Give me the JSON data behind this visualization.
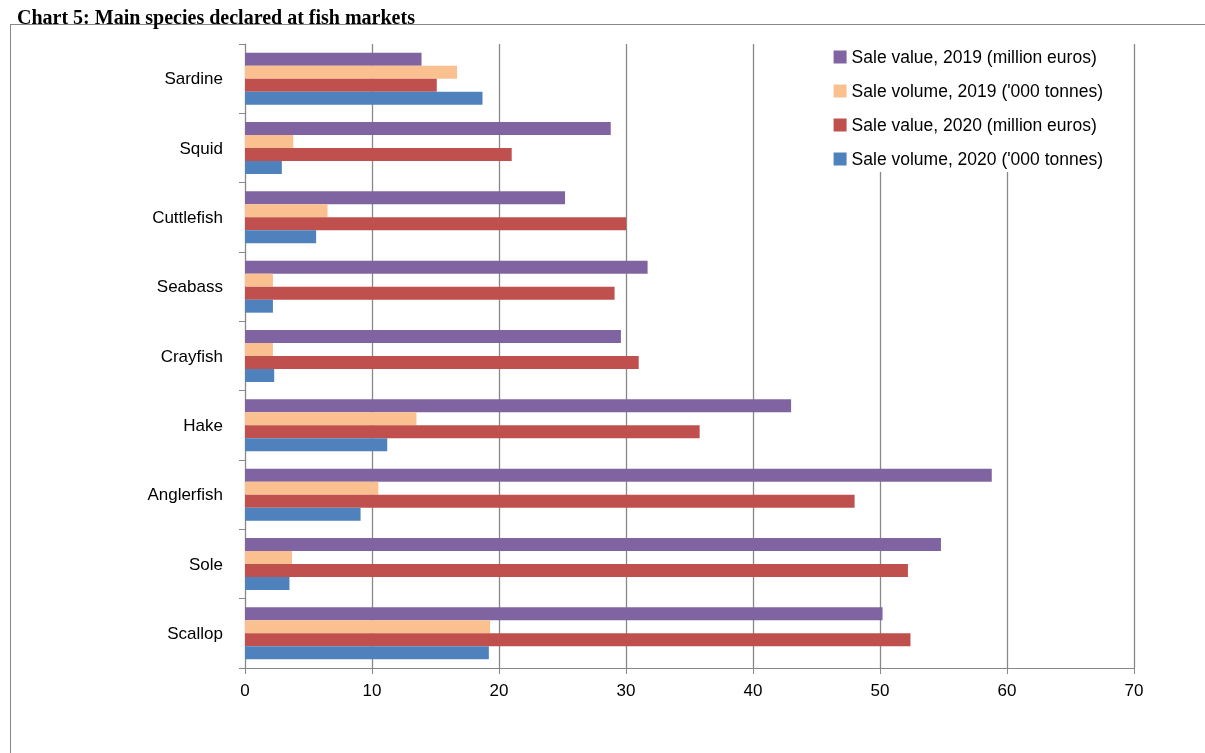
{
  "chart_data": {
    "type": "bar",
    "orientation": "horizontal",
    "title": "Chart 5: Main species declared at fish markets",
    "categories": [
      "Sardine",
      "Squid",
      "Cuttlefish",
      "Seabass",
      "Crayfish",
      "Hake",
      "Anglerfish",
      "Sole",
      "Scallop"
    ],
    "series": [
      {
        "name": "Sale value, 2019 (million euros)",
        "color": "#8064a2",
        "values": [
          13.9,
          28.8,
          25.2,
          31.7,
          29.6,
          43.0,
          58.8,
          54.8,
          50.2
        ]
      },
      {
        "name": "Sale volume, 2019 ('000 tonnes)",
        "color": "#fac090",
        "values": [
          16.7,
          3.8,
          6.5,
          2.2,
          2.2,
          13.5,
          10.5,
          3.7,
          19.3
        ]
      },
      {
        "name": "Sale value, 2020 (million euros)",
        "color": "#c0504d",
        "values": [
          15.1,
          21.0,
          30.0,
          29.1,
          31.0,
          35.8,
          48.0,
          52.2,
          52.4
        ]
      },
      {
        "name": "Sale volume, 2020 ('000 tonnes)",
        "color": "#4f81bd",
        "values": [
          18.7,
          2.9,
          5.6,
          2.2,
          2.3,
          11.2,
          9.1,
          3.5,
          19.2
        ]
      }
    ],
    "xlim": [
      0,
      70
    ],
    "xticks": [
      0,
      10,
      20,
      30,
      40,
      50,
      60,
      70
    ],
    "grid": "x",
    "legend": "top right"
  }
}
